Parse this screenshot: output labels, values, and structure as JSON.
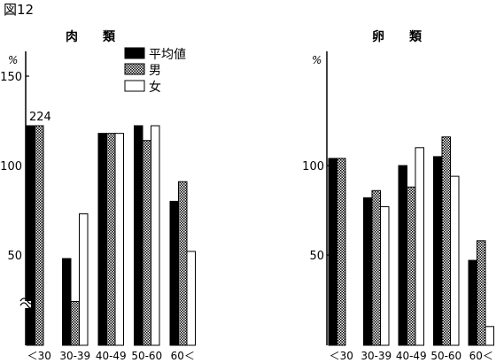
{
  "figure_label": "図12",
  "legend": [
    {
      "key": "avg",
      "label": "平均値"
    },
    {
      "key": "male",
      "label": "男"
    },
    {
      "key": "female",
      "label": "女"
    }
  ],
  "chart_data": [
    {
      "type": "bar",
      "title": "肉　　類",
      "ylabel": "%",
      "ylim": [
        20,
        150
      ],
      "yticks": [
        50,
        100,
        150
      ],
      "axis_break": true,
      "categories": [
        "＜30",
        "30-39",
        "40-49",
        "50-60",
        "60＜"
      ],
      "series": [
        {
          "key": "avg",
          "name": "平均値",
          "values": [
            123,
            48,
            118,
            130,
            80
          ]
        },
        {
          "key": "male",
          "name": "男",
          "values": [
            224,
            24,
            118,
            114,
            91
          ]
        },
        {
          "key": "female",
          "name": "女",
          "values": [
            null,
            73,
            118,
            140,
            52
          ]
        }
      ],
      "annotations": [
        {
          "text": "224",
          "category": "＜30",
          "series": "男"
        }
      ]
    },
    {
      "type": "bar",
      "title": "卵　　類",
      "ylabel": "%",
      "ylim": [
        0,
        150
      ],
      "yticks": [
        50,
        100
      ],
      "categories": [
        "＜30",
        "30-39",
        "40-49",
        "50-60",
        "60＜"
      ],
      "series": [
        {
          "key": "avg",
          "name": "平均値",
          "values": [
            104,
            82,
            100,
            105,
            47
          ]
        },
        {
          "key": "male",
          "name": "男",
          "values": [
            104,
            86,
            88,
            116,
            58
          ]
        },
        {
          "key": "female",
          "name": "女",
          "values": [
            null,
            77,
            110,
            94,
            10
          ]
        }
      ]
    }
  ]
}
